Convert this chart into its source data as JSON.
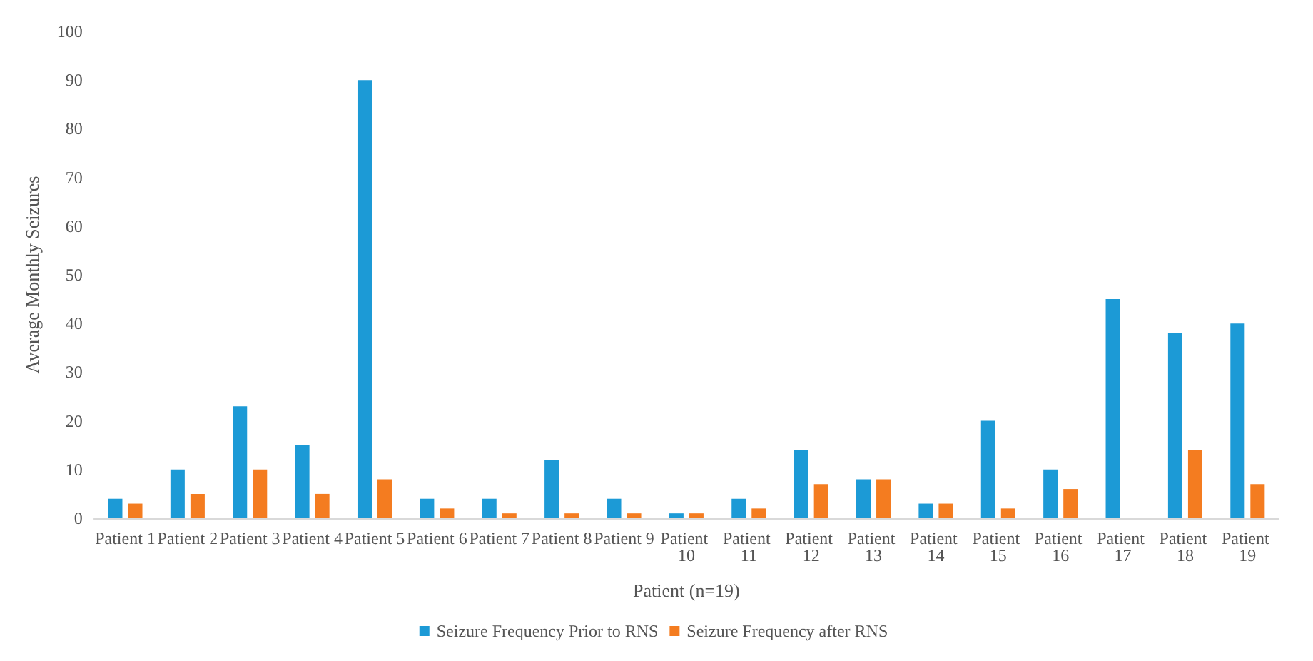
{
  "chart_data": {
    "type": "bar",
    "xlabel": "Patient (n=19)",
    "ylabel": "Average Monthly Seizures",
    "categories": [
      "Patient 1",
      "Patient 2",
      "Patient 3",
      "Patient 4",
      "Patient 5",
      "Patient 6",
      "Patient 7",
      "Patient 8",
      "Patient 9",
      "Patient 10",
      "Patient 11",
      "Patient 12",
      "Patient 13",
      "Patient 14",
      "Patient 15",
      "Patient 16",
      "Patient 17",
      "Patient 18",
      "Patient 19"
    ],
    "series": [
      {
        "name": "Seizure Frequency Prior to RNS",
        "color": "#1c9ad6",
        "values": [
          4,
          10,
          23,
          15,
          90,
          4,
          4,
          12,
          4,
          1,
          4,
          14,
          8,
          3,
          20,
          10,
          45,
          38,
          40
        ]
      },
      {
        "name": "Seizure Frequency after RNS",
        "color": "#f47c20",
        "values": [
          3,
          5,
          10,
          5,
          8,
          2,
          1,
          1,
          1,
          1,
          2,
          7,
          8,
          3,
          2,
          6,
          0,
          14,
          7
        ]
      }
    ],
    "ylim": [
      0,
      100
    ],
    "yticks": [
      0,
      10,
      20,
      30,
      40,
      50,
      60,
      70,
      80,
      90,
      100
    ],
    "grid": false,
    "legend": "bottom"
  }
}
